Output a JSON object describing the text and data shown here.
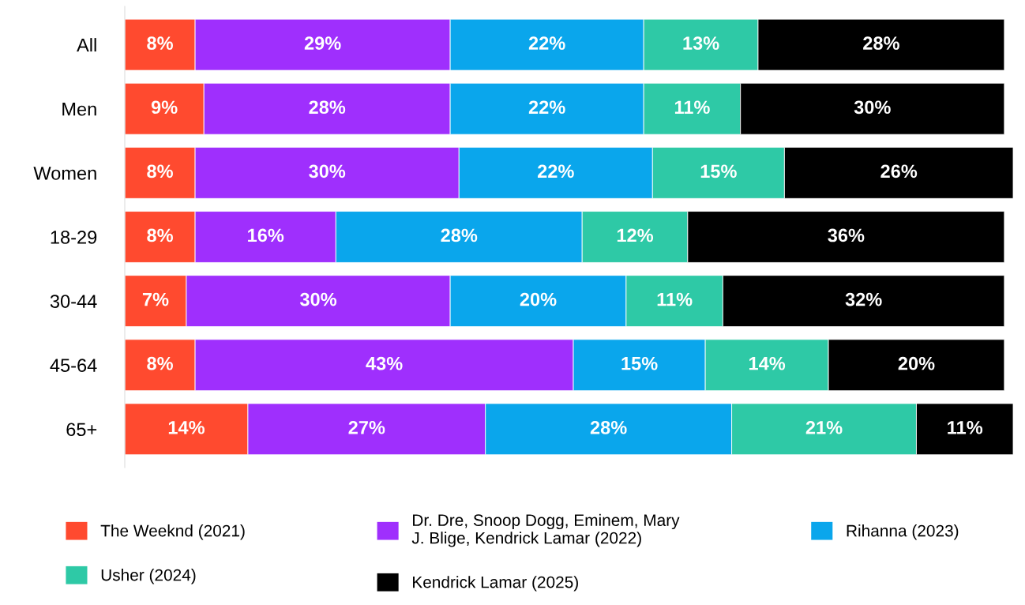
{
  "chart_data": {
    "type": "bar",
    "orientation": "horizontal",
    "stacked": true,
    "legend": "bottom",
    "grid": false,
    "categories": [
      "All",
      "Men",
      "Women",
      "18-29",
      "30-44",
      "45-64",
      "65+"
    ],
    "series": [
      {
        "name": "The Weeknd (2021)",
        "color": "#ff4a2f",
        "values": [
          8,
          9,
          8,
          8,
          7,
          8,
          14
        ],
        "value_labels": [
          "8%",
          "9%",
          "8%",
          "8%",
          "7%",
          "8%",
          "14%"
        ]
      },
      {
        "name": "Dr. Dre, Snoop Dogg, Eminem, Mary J. Blige, Kendrick Lamar (2022)",
        "color": "#9f2ffd",
        "values": [
          29,
          28,
          30,
          16,
          30,
          43,
          27
        ],
        "value_labels": [
          "29%",
          "28%",
          "30%",
          "16%",
          "30%",
          "43%",
          "27%"
        ]
      },
      {
        "name": "Rihanna (2023)",
        "color": "#0aa6ec",
        "values": [
          22,
          22,
          22,
          28,
          20,
          15,
          28
        ],
        "value_labels": [
          "22%",
          "22%",
          "22%",
          "28%",
          "20%",
          "15%",
          "28%"
        ]
      },
      {
        "name": "Usher (2024)",
        "color": "#2ec9a6",
        "values": [
          13,
          11,
          15,
          12,
          11,
          14,
          21
        ],
        "value_labels": [
          "13%",
          "11%",
          "15%",
          "12%",
          "11%",
          "14%",
          "21%"
        ]
      },
      {
        "name": "Kendrick Lamar (2025)",
        "color": "#000000",
        "values": [
          28,
          30,
          26,
          36,
          32,
          20,
          11
        ],
        "value_labels": [
          "28%",
          "30%",
          "26%",
          "36%",
          "32%",
          "20%",
          "11%"
        ]
      }
    ]
  }
}
